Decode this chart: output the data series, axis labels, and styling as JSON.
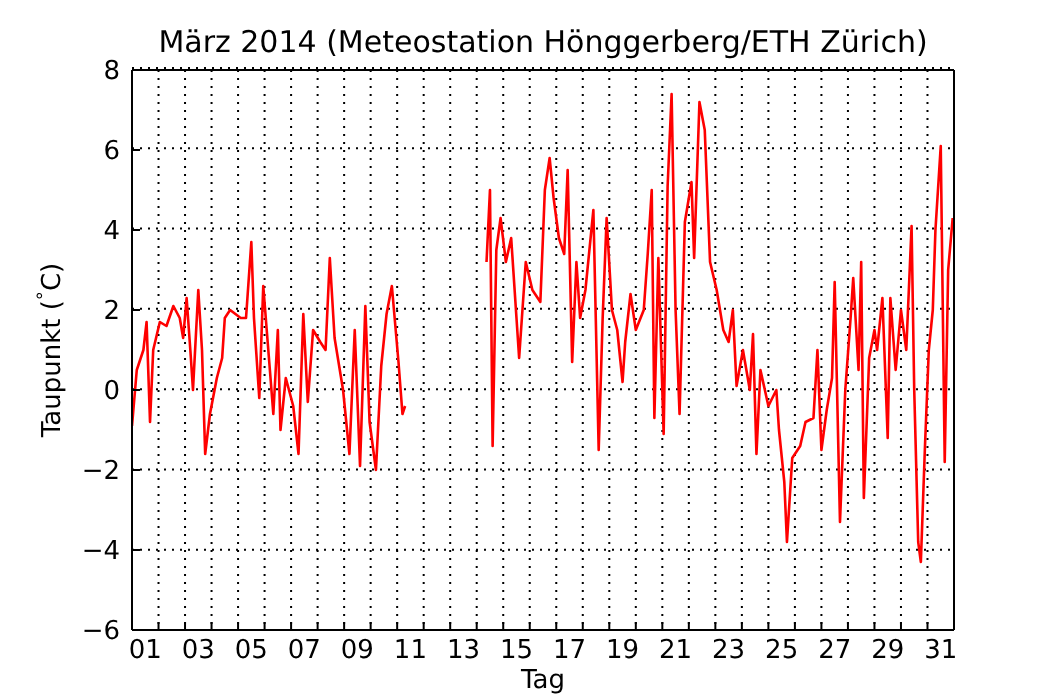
{
  "chart_data": {
    "type": "line",
    "title": "März 2014  (Meteostation Hönggerberg/ETH Zürich)",
    "xlabel": "Tag",
    "ylabel": "Taupunkt ($^{°}$C)",
    "series": [
      {
        "color": "#ff0000",
        "x": [
          0.5,
          0.68,
          0.93,
          1.05,
          1.18,
          1.3,
          1.55,
          1.8,
          2.06,
          2.3,
          2.43,
          2.56,
          2.7,
          2.8,
          3.0,
          3.14,
          3.26,
          3.44,
          3.7,
          3.9,
          4.0,
          4.2,
          4.6,
          4.8,
          5.0,
          5.1,
          5.3,
          5.45,
          5.7,
          5.83,
          6.0,
          6.1,
          6.3,
          6.58,
          6.78,
          6.96,
          7.13,
          7.33,
          7.6,
          7.8,
          7.96,
          8.14,
          8.46,
          8.7,
          8.9,
          9.1,
          9.3,
          9.46,
          9.7,
          9.9,
          10.1,
          10.3,
          10.55,
          10.7,
          10.8
        ],
        "values": [
          -0.9,
          0.5,
          1.0,
          1.7,
          -0.8,
          1.0,
          1.7,
          1.6,
          2.1,
          1.8,
          1.3,
          2.3,
          1.0,
          0.0,
          2.5,
          1.0,
          -1.6,
          -0.6,
          0.3,
          0.8,
          1.8,
          2.0,
          1.8,
          1.8,
          3.7,
          1.8,
          -0.2,
          2.6,
          0.5,
          -0.6,
          1.5,
          -1.0,
          0.3,
          -0.4,
          -1.6,
          1.9,
          -0.3,
          1.5,
          1.2,
          1.0,
          3.3,
          1.3,
          0.0,
          -1.6,
          1.5,
          -1.9,
          2.1,
          -0.8,
          -2.0,
          0.6,
          1.9,
          2.6,
          0.7,
          -0.6,
          -0.4
        ]
      },
      {
        "color": "#ff0000",
        "x": [
          13.87,
          14.0,
          14.1,
          14.24,
          14.4,
          14.6,
          14.8,
          15.0,
          15.1,
          15.35,
          15.6,
          15.9,
          16.07,
          16.25,
          16.4,
          16.6,
          16.8,
          16.93,
          17.1,
          17.26,
          17.4,
          17.6,
          17.9,
          18.1,
          18.25,
          18.4,
          18.6,
          18.8,
          19.0,
          19.1,
          19.3,
          19.5,
          19.8,
          19.95,
          20.1,
          20.2,
          20.35,
          20.55,
          20.7,
          20.85,
          21.0,
          21.15,
          21.35,
          21.6,
          21.7,
          21.9,
          22.1,
          22.3,
          22.55,
          22.8,
          23.0,
          23.16,
          23.3,
          23.54,
          23.8,
          23.92,
          24.05,
          24.2,
          24.5,
          24.8,
          24.9,
          25.1,
          25.2,
          25.4,
          25.7,
          25.9,
          26.2,
          26.35,
          26.5,
          26.7,
          26.9,
          27.0,
          27.2,
          27.4,
          27.6,
          27.7,
          27.9,
          28.0,
          28.1,
          28.3,
          28.5,
          28.6,
          28.8,
          29.0,
          29.1,
          29.3,
          29.5,
          29.7,
          29.9,
          30.0,
          30.15,
          30.25,
          30.4,
          30.55,
          30.7,
          30.8,
          31.0,
          31.15,
          31.28,
          31.45
        ],
        "values": [
          3.2,
          5.0,
          -1.4,
          3.5,
          4.3,
          3.2,
          3.8,
          1.8,
          0.8,
          3.2,
          2.5,
          2.2,
          5.0,
          5.8,
          4.8,
          3.8,
          3.4,
          5.5,
          0.7,
          3.2,
          1.8,
          2.5,
          4.5,
          -1.5,
          1.8,
          4.3,
          2.0,
          1.5,
          0.2,
          1.2,
          2.4,
          1.5,
          2.0,
          3.4,
          5.0,
          -0.7,
          3.3,
          -1.1,
          5.1,
          7.4,
          2.0,
          -0.6,
          4.2,
          5.2,
          3.3,
          7.2,
          6.5,
          3.2,
          2.5,
          1.5,
          1.2,
          2.0,
          0.1,
          1.0,
          0.0,
          1.4,
          -1.6,
          0.5,
          -0.4,
          0.0,
          -1.0,
          -2.3,
          -3.8,
          -1.7,
          -1.4,
          -0.8,
          -0.7,
          1.0,
          -1.5,
          -0.5,
          0.3,
          2.7,
          -3.3,
          0.0,
          1.8,
          2.8,
          0.5,
          3.2,
          -2.7,
          0.8,
          1.5,
          1.0,
          2.3,
          -1.2,
          2.3,
          0.5,
          2.0,
          1.0,
          4.1,
          0.0,
          -3.8,
          -4.3,
          -1.5,
          1.0,
          2.0,
          4.0,
          6.1,
          -1.8,
          3.0,
          4.3
        ]
      }
    ],
    "xlim": [
      0.5,
      31.5
    ],
    "xticks": [
      {
        "value": 1,
        "label": "01"
      },
      {
        "value": 3,
        "label": "03"
      },
      {
        "value": 5,
        "label": "05"
      },
      {
        "value": 7,
        "label": "07"
      },
      {
        "value": 9,
        "label": "09"
      },
      11,
      13,
      15,
      17,
      19,
      21,
      23,
      25,
      27,
      29,
      31,
      {
        "value": 1.5,
        "label": null
      },
      {
        "value": 2.5,
        "label": null
      },
      {
        "value": 3.5,
        "label": null
      },
      {
        "value": 4.5,
        "label": null
      },
      {
        "value": 5.5,
        "label": null
      },
      {
        "value": 6.5,
        "label": null
      },
      {
        "value": 7.5,
        "label": null
      },
      {
        "value": 8.5,
        "label": null
      },
      {
        "value": 9.5,
        "label": null
      },
      {
        "value": 10.5,
        "label": null
      },
      {
        "value": 11.5,
        "label": null
      },
      {
        "value": 12.5,
        "label": null
      },
      {
        "value": 13.5,
        "label": null
      },
      {
        "value": 14.5,
        "label": null
      },
      {
        "value": 15.5,
        "label": null
      },
      {
        "value": 16.5,
        "label": null
      },
      {
        "value": 17.5,
        "label": null
      },
      {
        "value": 18.5,
        "label": null
      },
      {
        "value": 19.5,
        "label": null
      },
      {
        "value": 20.5,
        "label": null
      },
      {
        "value": 21.5,
        "label": null
      },
      {
        "value": 22.5,
        "label": null
      },
      {
        "value": 23.5,
        "label": null
      },
      {
        "value": 24.5,
        "label": null
      },
      {
        "value": 25.5,
        "label": null
      },
      {
        "value": 26.5,
        "label": null
      },
      {
        "value": 27.5,
        "label": null
      },
      {
        "value": 28.5,
        "label": null
      },
      {
        "value": 29.5,
        "label": null
      },
      {
        "value": 30.5,
        "label": null
      }
    ],
    "ylim": [
      -6,
      8
    ],
    "yticks": [
      -6,
      -4,
      -2,
      0,
      2,
      4,
      6,
      8
    ],
    "grid": true,
    "line_style": "solid"
  }
}
